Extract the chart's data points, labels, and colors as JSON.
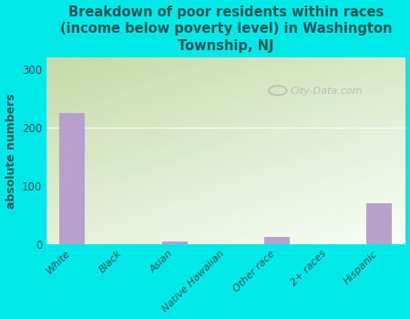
{
  "title": "Breakdown of poor residents within races\n(income below poverty level) in Washington\nTownship, NJ",
  "categories": [
    "White",
    "Black",
    "Asian",
    "Native Hawaiian",
    "Other race",
    "2+ races",
    "Hispanic"
  ],
  "values": [
    225,
    0,
    5,
    0,
    12,
    0,
    70
  ],
  "bar_color": "#b8a0cc",
  "ylabel": "absolute numbers",
  "ylim": [
    0,
    320
  ],
  "yticks": [
    0,
    100,
    200,
    300
  ],
  "background_color": "#00e8e8",
  "title_color": "#1a5555",
  "tick_label_color": "#1a5555",
  "ylabel_color": "#1a5555",
  "watermark": "City-Data.com",
  "title_fontsize": 10.5,
  "ylabel_fontsize": 9,
  "tick_fontsize": 8,
  "grad_color_top_left": "#c5dba8",
  "grad_color_bottom_right": "#f8fef8",
  "grid_color": "#e0e0e0"
}
